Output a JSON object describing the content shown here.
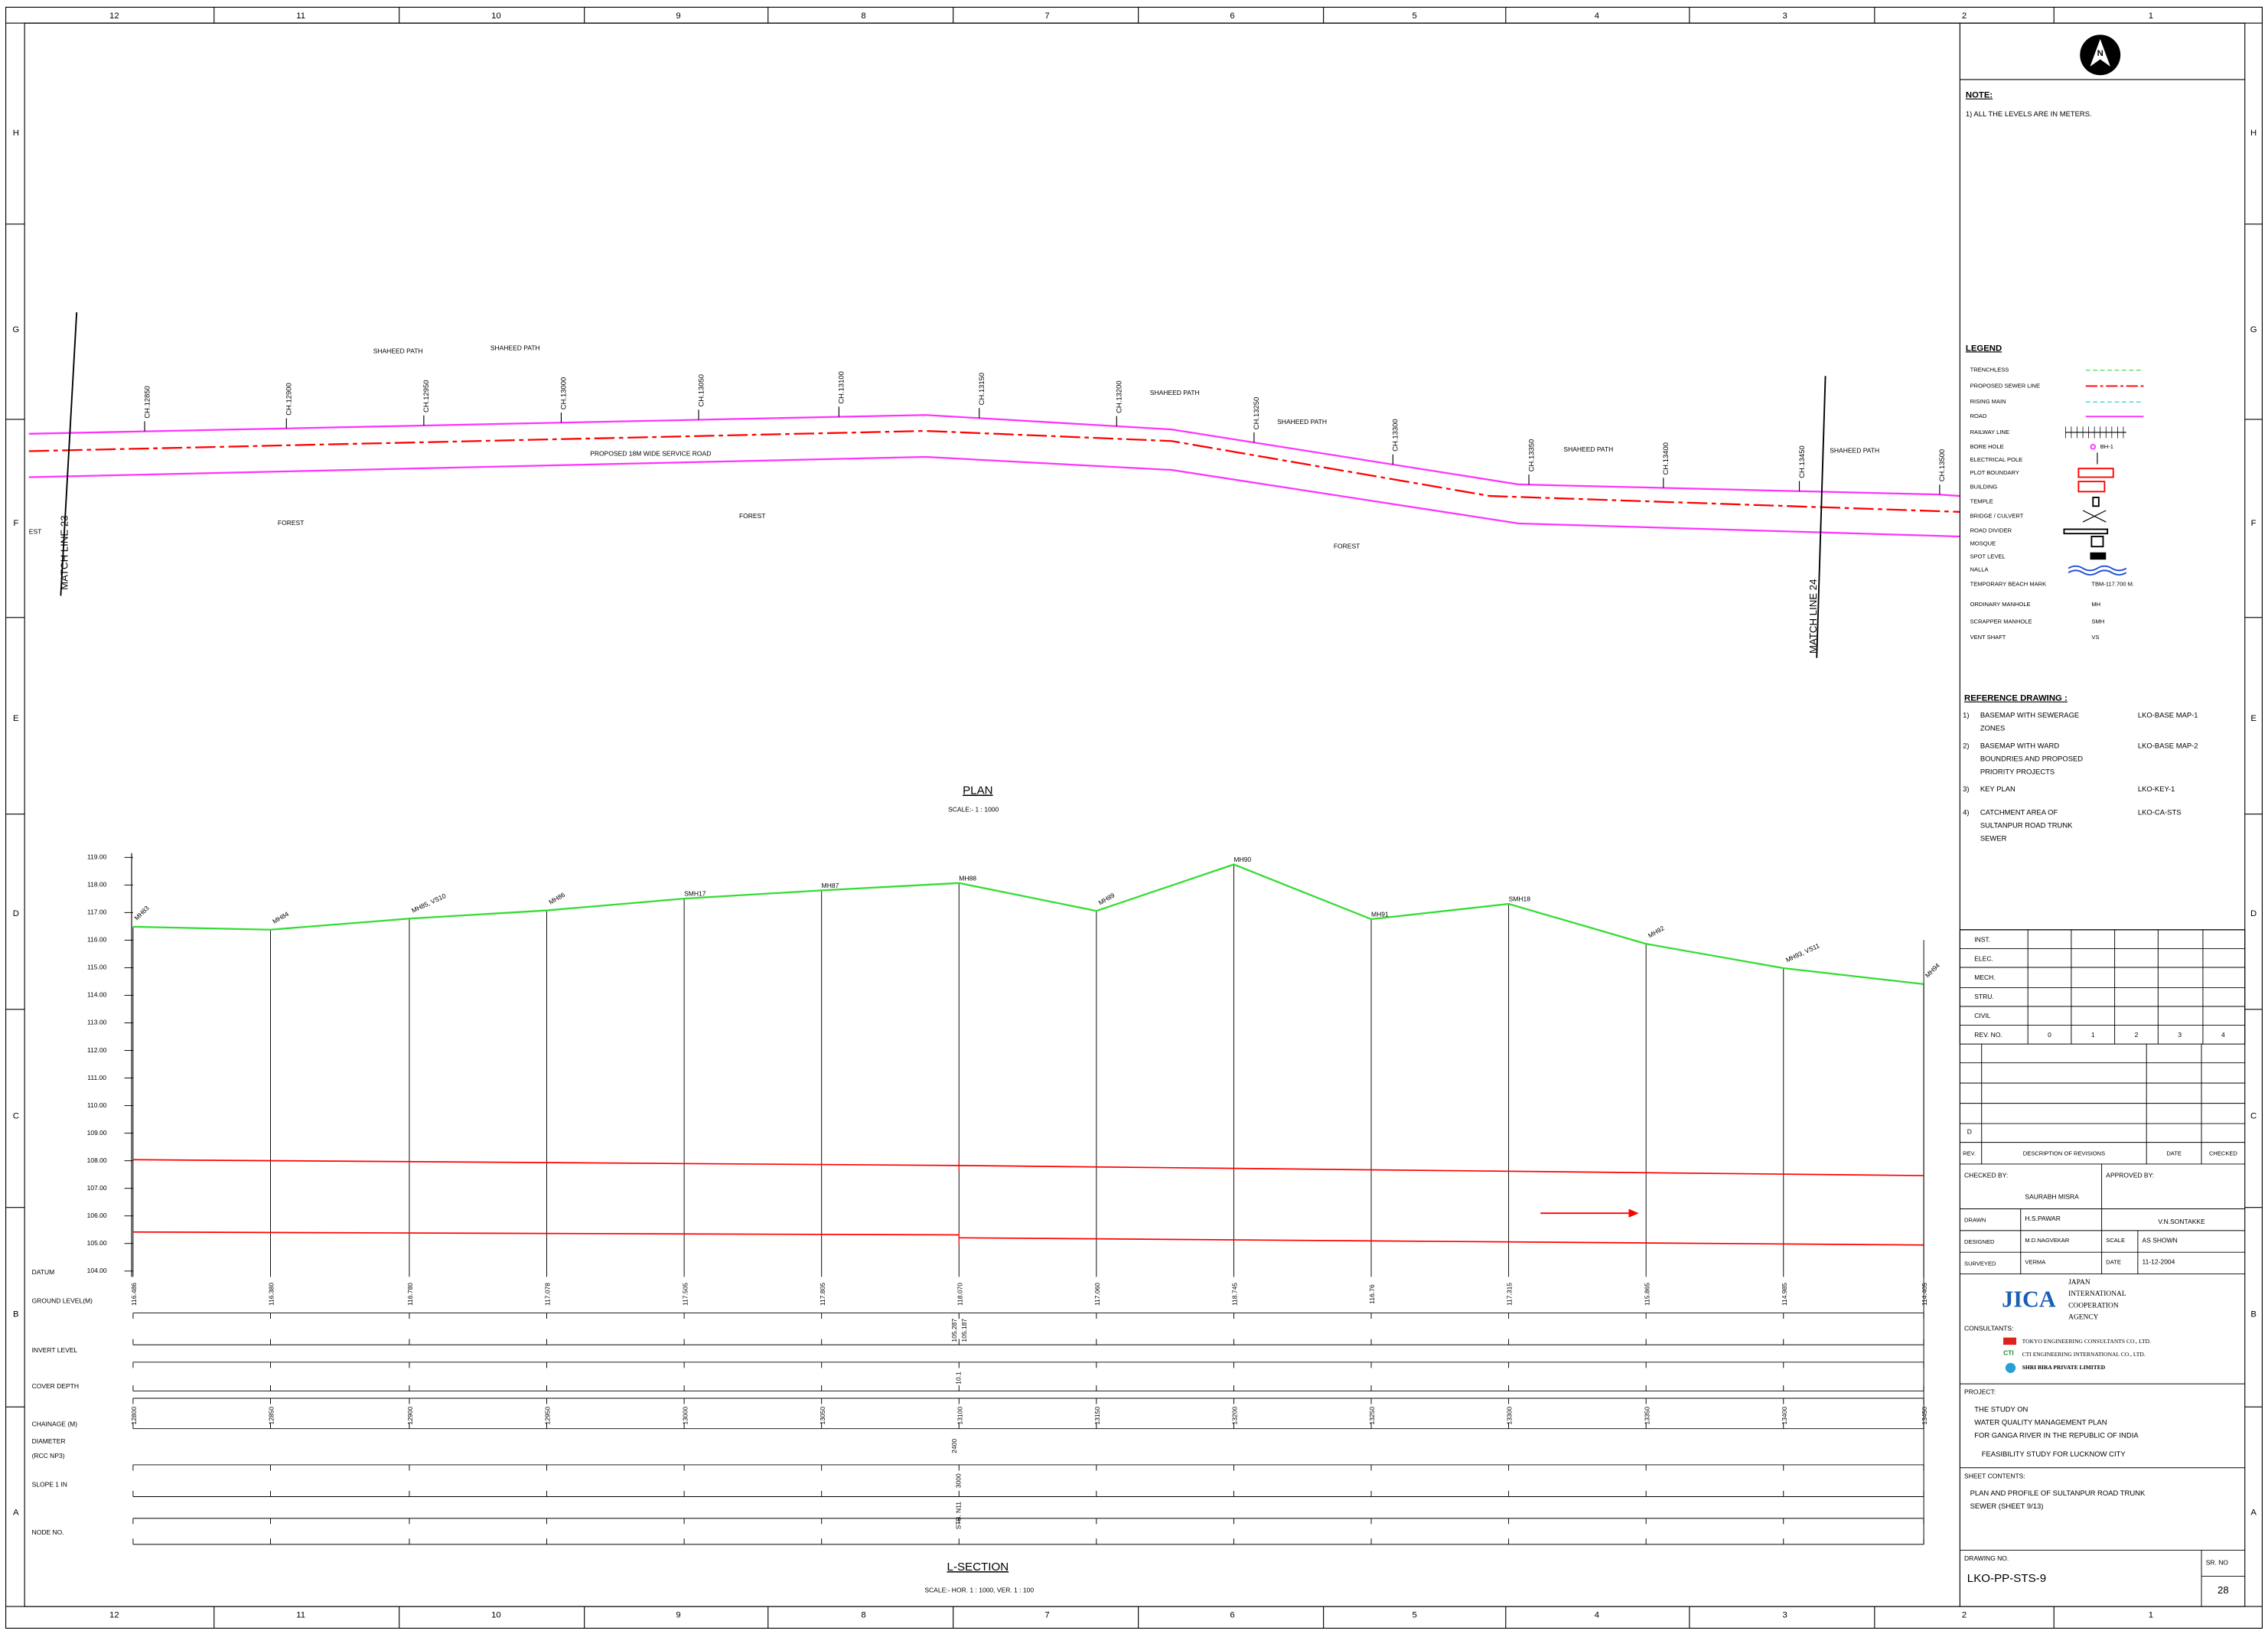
{
  "border": {
    "columns": [
      "12",
      "11",
      "10",
      "9",
      "8",
      "7",
      "6",
      "5",
      "4",
      "3",
      "2",
      "1"
    ],
    "rows": [
      "H",
      "G",
      "F",
      "E",
      "D",
      "C",
      "B",
      "A"
    ]
  },
  "plan": {
    "chainages": [
      "CH.12850",
      "CH.12900",
      "CH.12950",
      "CH.13000",
      "CH.13050",
      "CH.13100",
      "CH.13150",
      "CH.13200",
      "CH.13250",
      "CH.13300",
      "CH.13350",
      "CH.13400",
      "CH.13450",
      "CH.13500"
    ],
    "road_labels": [
      "SHAHEED PATH",
      "SHAHEED PATH",
      "SHAHEED PATH",
      "SHAHEED PATH",
      "SHAHEED PATH",
      "SHAHEED PATH"
    ],
    "service_road": "PROPOSED 18M WIDE SERVICE ROAD",
    "forest": [
      "FOREST",
      "FOREST",
      "FOREST"
    ],
    "edge_label": "EST",
    "match_lines": [
      "MATCH LINE 23",
      "MATCH LINE 24"
    ],
    "title": "PLAN",
    "scale": "SCALE:- 1 : 1000"
  },
  "l_section": {
    "level_ticks": [
      "104.00",
      "105.00",
      "106.00",
      "107.00",
      "108.00",
      "109.00",
      "110.00",
      "111.00",
      "112.00",
      "113.00",
      "114.00",
      "115.00",
      "116.00",
      "117.00",
      "118.00",
      "119.00"
    ],
    "manholes": [
      "MH83",
      "MH84",
      "MH85, VS10",
      "MH86",
      "SMH17",
      "MH87",
      "MH88",
      "MH89",
      "MH90",
      "MH91",
      "SMH18",
      "MH92",
      "MH93, VS11",
      "MH94"
    ],
    "row_labels": [
      "DATUM",
      "GROUND LEVEL(M)",
      "INVERT LEVEL",
      "COVER DEPTH",
      "CHAINAGE (M)",
      "DIAMETER",
      "(RCC NP3)",
      "SLOPE 1 IN",
      "NODE NO."
    ],
    "ground_levels": [
      "116.486",
      "116.380",
      "116.780",
      "117.078",
      "117.505",
      "117.805",
      "118.070",
      "117.060",
      "118.745",
      "116.76",
      "117.315",
      "115.865",
      "114.985",
      "114.405"
    ],
    "invert_levels": [
      "105.287",
      "105.187"
    ],
    "cover_depth": "10.1",
    "chainages": [
      "12800",
      "12850",
      "12900",
      "12950",
      "13000",
      "13050",
      "13100",
      "13150",
      "13200",
      "13250",
      "13300",
      "13350",
      "13400",
      "13450"
    ],
    "diameter": "2400",
    "slope": "3000",
    "node": "STB. N11",
    "title": "L-SECTION",
    "scale": "SCALE:- HOR. 1 : 1000, VER. 1 : 100"
  },
  "title_block": {
    "north": "N",
    "note_title": "NOTE:",
    "note": "1) ALL THE LEVELS ARE IN METERS.",
    "legend_title": "LEGEND",
    "legend": [
      "TRENCHLESS",
      "PROPOSED SEWER LINE",
      "RISING MAIN",
      "ROAD",
      "RAILWAY LINE",
      "BORE HOLE",
      "ELECTRICAL POLE",
      "PLOT BOUNDARY",
      "BUILDING",
      "TEMPLE",
      "BRIDGE / CULVERT",
      "ROAD DIVIDER",
      "MOSQUE",
      "SPOT LEVEL",
      "NALLA",
      "TEMPORARY BEACH MARK",
      "ORDINARY MANHOLE",
      "SCRAPPER MANHOLE",
      "VENT SHAFT"
    ],
    "bore_hole_tag": "BH-1",
    "tbm": "TBM-117.700 M.",
    "mh": "MH",
    "smh": "SMH",
    "vs": "VS",
    "reference_title": "REFERENCE DRAWING :",
    "references": [
      {
        "number": "1)",
        "lines": [
          "BASEMAP WITH SEWERAGE",
          "ZONES"
        ],
        "code": "LKO-BASE MAP-1"
      },
      {
        "number": "2)",
        "lines": [
          "BASEMAP WITH WARD",
          "BOUNDRIES AND PROPOSED",
          "PRIORITY PROJECTS"
        ],
        "code": "LKO-BASE MAP-2"
      },
      {
        "number": "3)",
        "lines": [
          "KEY PLAN"
        ],
        "code": "LKO-KEY-1"
      },
      {
        "number": "4)",
        "lines": [
          "CATCHMENT AREA OF",
          "SULTANPUR ROAD TRUNK",
          "SEWER"
        ],
        "code": "LKO-CA-STS"
      }
    ],
    "disciplines": [
      "INST.",
      "ELEC.",
      "MECH.",
      "STRU.",
      "CIVIL"
    ],
    "rev_no": "REV. NO.",
    "rev_numbers": [
      "0",
      "1",
      "2",
      "3",
      "4"
    ],
    "rev_mark": "D",
    "rev_header": [
      "REV.",
      "DESCRIPTION OF REVISIONS",
      "DATE",
      "CHECKED"
    ],
    "checked_by": "CHECKED BY:",
    "approved_by": "APPROVED BY:",
    "checker": "SAURABH MISRA",
    "drawn": "DRAWN",
    "drawn_by": "H.S.PAWAR",
    "approver": "V.N.SONTAKKE",
    "designed": "DESIGNED",
    "designed_by": "M.D.NAGVEKAR",
    "scale_label": "SCALE",
    "scale": "AS SHOWN",
    "surveyed": "SURVEYED",
    "surveyed_by": "VERMA",
    "date_label": "DATE",
    "date": "11-12-2004",
    "agency_logo": "JICA",
    "agency": [
      "JAPAN",
      "INTERNATIONAL",
      "COOPERATION",
      "AGENCY"
    ],
    "consultants_title": "CONSULTANTS:",
    "consultants": [
      "TOKYO ENGINEERING CONSULTANTS CO., LTD.",
      "CTI ENGINEERING INTERNATIONAL CO., LTD.",
      "SHRI BIRA PRIVATE LIMITED"
    ],
    "cti_mark": "CTI",
    "project_title": "PROJECT:",
    "project": [
      "THE STUDY ON",
      "WATER QUALITY MANAGEMENT PLAN",
      "FOR GANGA RIVER IN THE REPUBLIC OF INDIA",
      "FEASIBILITY STUDY FOR LUCKNOW CITY"
    ],
    "sheet_title": "SHEET CONTENTS:",
    "sheet": [
      "PLAN AND PROFILE OF SULTANPUR ROAD TRUNK",
      "SEWER (SHEET 9/13)"
    ],
    "drawing_no_label": "DRAWING NO.",
    "drawing_no": "LKO-PP-STS-9",
    "sr_no_label": "SR. NO",
    "sr_no": "28"
  }
}
